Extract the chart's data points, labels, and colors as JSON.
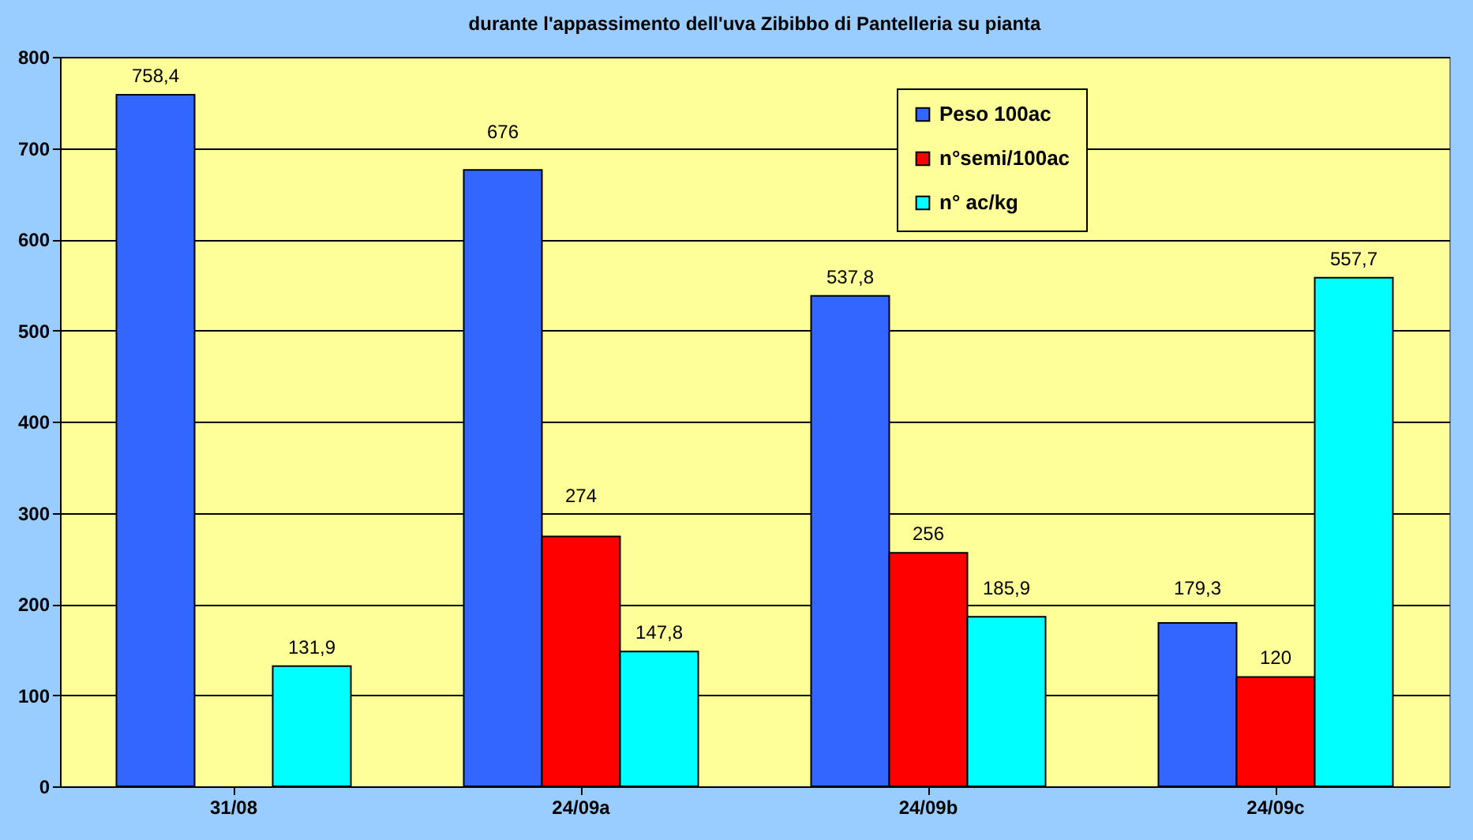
{
  "chart_data": {
    "type": "bar",
    "title": "durante l'appassimento dell'uva Zibibbo di Pantelleria su pianta",
    "categories": [
      "31/08",
      "24/09a",
      "24/09b",
      "24/09c"
    ],
    "series": [
      {
        "name": "Peso 100ac",
        "color": "#3366ff",
        "values": [
          758.4,
          676,
          537.8,
          179.3
        ],
        "value_labels": [
          "758,4",
          "676",
          "537,8",
          "179,3"
        ]
      },
      {
        "name": "n°semi/100ac",
        "color": "#ff0000",
        "values": [
          null,
          274,
          256,
          120
        ],
        "value_labels": [
          null,
          "274",
          "256",
          "120"
        ]
      },
      {
        "name": "n° ac/kg",
        "color": "#00ffff",
        "values": [
          131.9,
          147.8,
          185.9,
          557.7
        ],
        "value_labels": [
          "131,9",
          "147,8",
          "185,9",
          "557,7"
        ]
      }
    ],
    "ylim": [
      0,
      800
    ],
    "yticks": [
      0,
      100,
      200,
      300,
      400,
      500,
      600,
      700,
      800
    ],
    "grid": "y",
    "legend": "top right"
  }
}
